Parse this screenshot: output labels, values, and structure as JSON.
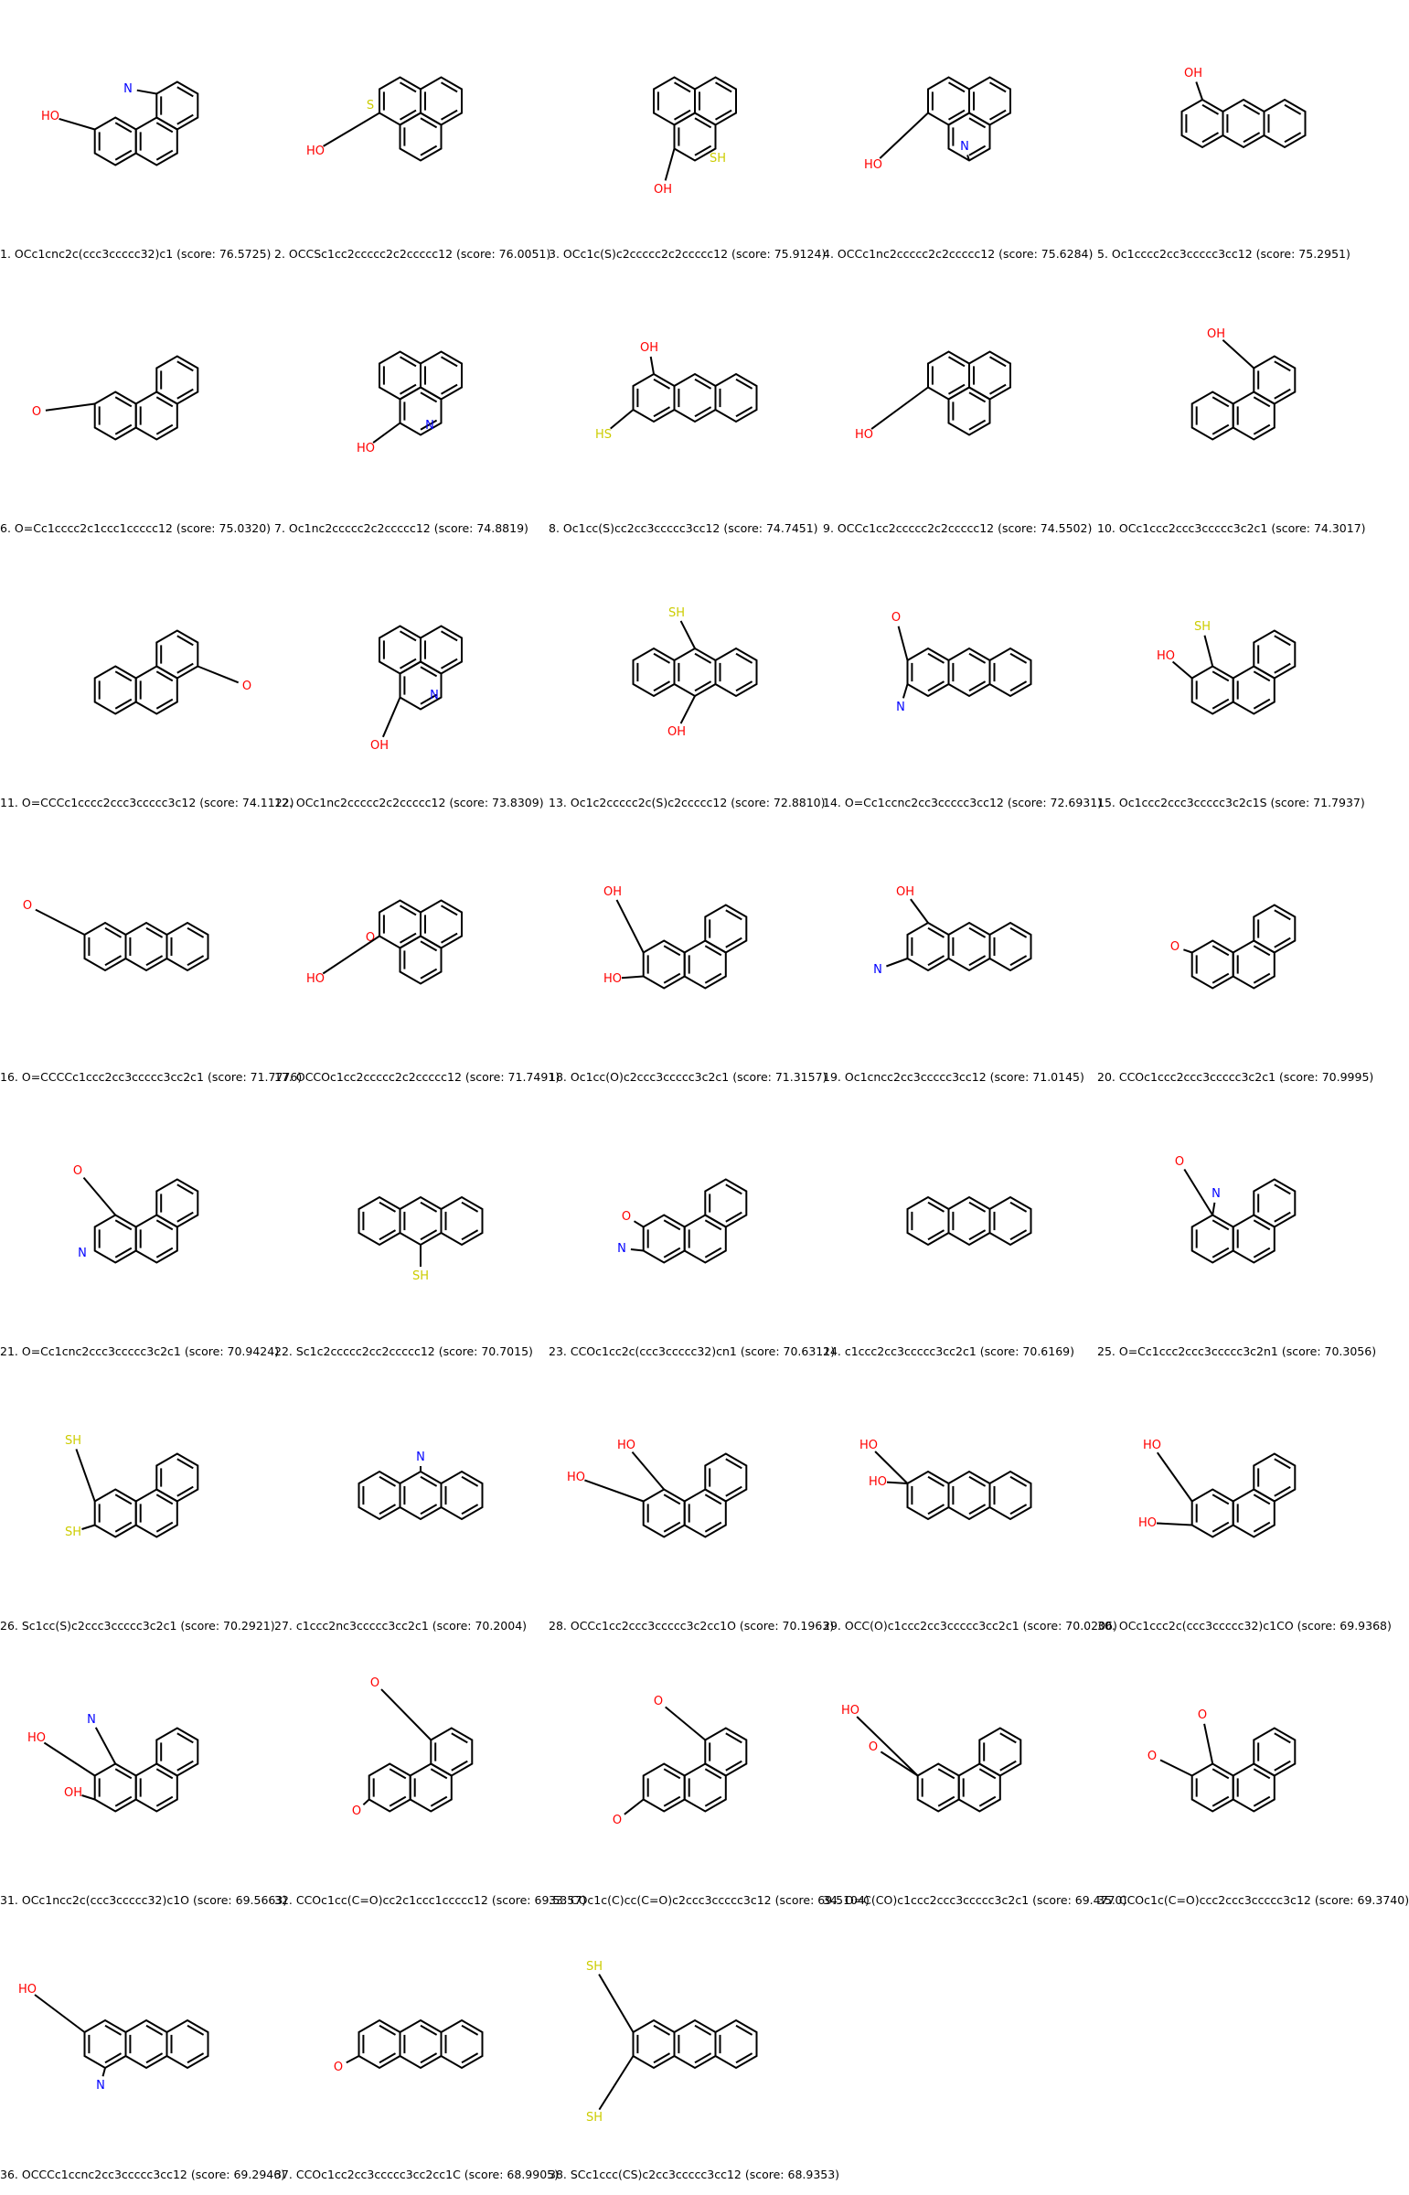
{
  "colors": {
    "bond": "#000000",
    "O": "#ff0000",
    "N": "#0000ff",
    "S": "#cccc00"
  },
  "items": [
    {
      "label": "1. OCc1cnc2c(ccc3ccccc32)c1 (score: 76.5725)"
    },
    {
      "label": "2. OCCSc1cc2ccccc2c2ccccc12 (score: 76.0051)"
    },
    {
      "label": "3. OCc1c(S)c2ccccc2c2ccccc12 (score: 75.9124)"
    },
    {
      "label": "4. OCCc1nc2ccccc2c2ccccc12 (score: 75.6284)"
    },
    {
      "label": "5. Oc1cccc2cc3ccccc3cc12 (score: 75.2951)"
    },
    {
      "label": "6. O=Cc1cccc2c1ccc1ccccc12 (score: 75.0320)"
    },
    {
      "label": "7. Oc1nc2ccccc2c2ccccc12 (score: 74.8819)"
    },
    {
      "label": "8. Oc1cc(S)cc2cc3ccccc3cc12 (score: 74.7451)"
    },
    {
      "label": "9. OCCc1cc2ccccc2c2ccccc12 (score: 74.5502)"
    },
    {
      "label": "10. OCc1ccc2ccc3ccccc3c2c1 (score: 74.3017)"
    },
    {
      "label": "11. O=CCCc1cccc2ccc3ccccc3c12 (score: 74.1122)"
    },
    {
      "label": "12. OCc1nc2ccccc2c2ccccc12 (score: 73.8309)"
    },
    {
      "label": "13. Oc1c2ccccc2c(S)c2ccccc12 (score: 72.8810)"
    },
    {
      "label": "14. O=Cc1ccnc2cc3ccccc3cc12 (score: 72.6931)"
    },
    {
      "label": "15. Oc1ccc2ccc3ccccc3c2c1S (score: 71.7937)"
    },
    {
      "label": "16. O=CCCCc1ccc2cc3ccccc3cc2c1 (score: 71.7776)"
    },
    {
      "label": "17. OCCOc1cc2ccccc2c2ccccc12 (score: 71.7491)"
    },
    {
      "label": "18. Oc1cc(O)c2ccc3ccccc3c2c1 (score: 71.3157)"
    },
    {
      "label": "19. Oc1cncc2cc3ccccc3cc12 (score: 71.0145)"
    },
    {
      "label": "20. CCOc1ccc2ccc3ccccc3c2c1 (score: 70.9995)"
    },
    {
      "label": "21. O=Cc1cnc2ccc3ccccc3c2c1 (score: 70.9424)"
    },
    {
      "label": "22. Sc1c2ccccc2cc2ccccc12 (score: 70.7015)"
    },
    {
      "label": "23. CCOc1cc2c(ccc3ccccc32)cn1 (score: 70.6311)"
    },
    {
      "label": "24. c1ccc2cc3ccccc3cc2c1 (score: 70.6169)"
    },
    {
      "label": "25. O=Cc1ccc2ccc3ccccc3c2n1 (score: 70.3056)"
    },
    {
      "label": "26. Sc1cc(S)c2ccc3ccccc3c2c1 (score: 70.2921)"
    },
    {
      "label": "27. c1ccc2nc3ccccc3cc2c1 (score: 70.2004)"
    },
    {
      "label": "28. OCCc1cc2ccc3ccccc3c2cc1O (score: 70.1963)"
    },
    {
      "label": "29. OCC(O)c1ccc2cc3ccccc3cc2c1 (score: 70.0206)"
    },
    {
      "label": "30. OCc1ccc2c(ccc3ccccc32)c1CO (score: 69.9368)"
    },
    {
      "label": "31. OCc1ncc2c(ccc3ccccc32)c1O (score: 69.5663)"
    },
    {
      "label": "32. CCOc1cc(C=O)cc2c1ccc1ccccc12 (score: 69.5357)"
    },
    {
      "label": "33. COc1c(C)cc(C=O)c2ccc3ccccc3c12 (score: 69.5104)"
    },
    {
      "label": "34. O=C(CO)c1ccc2ccc3ccccc3c2c1 (score: 69.4770)"
    },
    {
      "label": "35. CCOc1c(C=O)ccc2ccc3ccccc3c12 (score: 69.3740)"
    },
    {
      "label": "36. OCCCc1ccnc2cc3ccccc3cc12 (score: 69.2946)"
    },
    {
      "label": "37. CCOc1cc2cc3ccccc3cc2cc1C (score: 68.9905)"
    },
    {
      "label": "38. SCc1ccc(CS)c2cc3ccccc3cc12 (score: 68.9353)"
    }
  ]
}
